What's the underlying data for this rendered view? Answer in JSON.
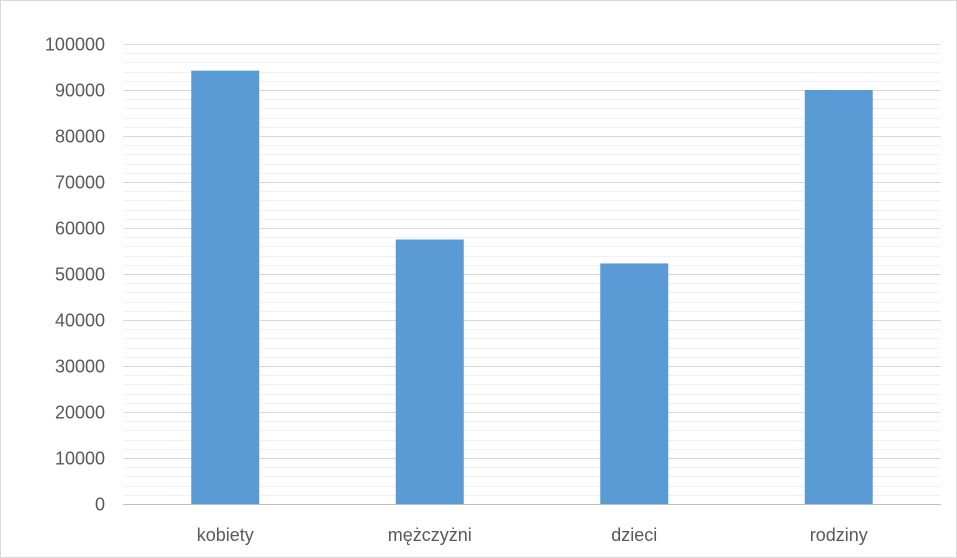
{
  "chart_data": {
    "type": "bar",
    "categories": [
      "kobiety",
      "mężczyżni",
      "dzieci",
      "rodziny"
    ],
    "values": [
      94200,
      57500,
      52300,
      90000
    ],
    "ylim": [
      0,
      100000
    ],
    "yticks": [
      0,
      10000,
      20000,
      30000,
      40000,
      50000,
      60000,
      70000,
      80000,
      90000,
      100000
    ],
    "minor_gridlines_per_major": 5,
    "grid": true,
    "legend": "none",
    "colors": {
      "bar": "#5b9bd5",
      "major_grid": "#d9d9d9",
      "minor_grid": "#f0f0f0",
      "axis": "#bfbfbf",
      "text": "#595959"
    }
  }
}
